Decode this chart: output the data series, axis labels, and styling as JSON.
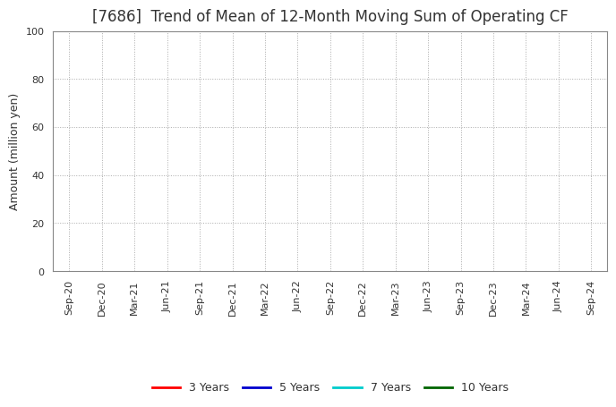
{
  "title": "[7686]  Trend of Mean of 12-Month Moving Sum of Operating CF",
  "ylabel": "Amount (million yen)",
  "ylim": [
    0,
    100
  ],
  "yticks": [
    0,
    20,
    40,
    60,
    80,
    100
  ],
  "x_labels": [
    "Sep-20",
    "Dec-20",
    "Mar-21",
    "Jun-21",
    "Sep-21",
    "Dec-21",
    "Mar-22",
    "Jun-22",
    "Sep-22",
    "Dec-22",
    "Mar-23",
    "Jun-23",
    "Sep-23",
    "Dec-23",
    "Mar-24",
    "Jun-24",
    "Sep-24"
  ],
  "legend_entries": [
    {
      "label": "3 Years",
      "color": "#ff0000"
    },
    {
      "label": "5 Years",
      "color": "#0000cd"
    },
    {
      "label": "7 Years",
      "color": "#00cccc"
    },
    {
      "label": "10 Years",
      "color": "#006400"
    }
  ],
  "background_color": "#ffffff",
  "grid_color": "#aaaaaa",
  "title_fontsize": 12,
  "axis_label_fontsize": 9,
  "tick_fontsize": 8
}
